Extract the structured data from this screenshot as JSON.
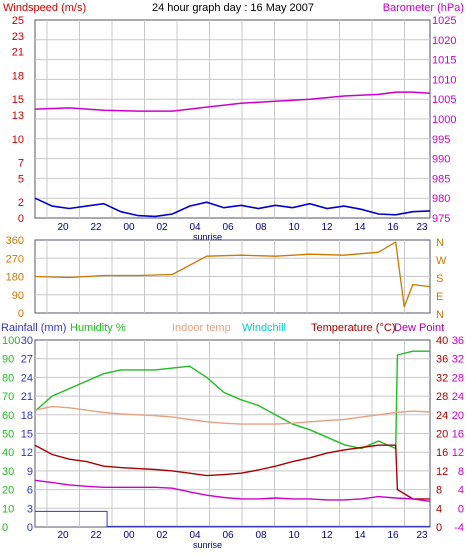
{
  "colors": {
    "wind": "#cc0000",
    "gust": "#e00000",
    "avg": "#0000cc",
    "baro": "#cc00cc",
    "dir": "#cc7700",
    "rain": "#3333cc",
    "hum": "#22bb22",
    "indoor": "#e8a080",
    "chill": "#00cccc",
    "temp": "#aa0000",
    "dew": "#cc00cc",
    "dewLabel": "#aa00aa",
    "grid": "#c8c8c8",
    "frame": "#555566",
    "sunrise": "#000088"
  },
  "top": {
    "title": "24 hour graph day : 16 May 2007",
    "left_label": "Windspeed (m/s)",
    "right_label": "Barometer (hPa)"
  },
  "mid": {
    "dir_letters": [
      "N",
      "W",
      "S",
      "E",
      "N"
    ]
  },
  "bottom": {
    "rain_label": "Rainfall (mm)",
    "hum_label": "Humidity %",
    "indoor_label": "Indoor temp",
    "chill_label": "Windchill",
    "temp_label": "Temperature (°C)",
    "dew_label": "Dew Point"
  },
  "sunrise_label": "sunrise",
  "chart_data": [
    {
      "type": "line",
      "title": "24 hour graph day : 16 May 2007",
      "x_tick_labels": [
        "20",
        "22",
        "00",
        "02",
        "04",
        "06",
        "08",
        "10",
        "12",
        "14",
        "16",
        "23"
      ],
      "y_left_label": "Windspeed (m/s)",
      "y_left_ticks": [
        0,
        2,
        5,
        7,
        10,
        13,
        15,
        18,
        21,
        23,
        25
      ],
      "y_left_range": [
        0,
        25
      ],
      "y_right_label": "Barometer (hPa)",
      "y_right_ticks": [
        975,
        980,
        985,
        990,
        995,
        1000,
        1005,
        1010,
        1015,
        1020,
        1025
      ],
      "y_right_range": [
        975,
        1025
      ],
      "series": [
        {
          "name": "Windspeed (m/s)",
          "axis": "left",
          "color": "wind",
          "x": [
            0,
            1,
            2,
            3,
            4,
            5,
            6,
            7,
            8,
            9,
            10,
            11,
            12,
            13,
            14,
            15,
            16,
            17,
            18,
            19,
            20,
            21,
            22,
            23
          ],
          "y": [
            2.5,
            1.5,
            1.2,
            1.5,
            1.8,
            0.8,
            0.3,
            0.2,
            0.5,
            1.5,
            2.0,
            1.3,
            1.6,
            1.2,
            1.6,
            1.3,
            1.8,
            1.2,
            1.5,
            1.1,
            0.5,
            0.4,
            0.8,
            0.9
          ]
        },
        {
          "name": "Barometer (hPa)",
          "axis": "right",
          "color": "baro",
          "x": [
            0,
            2,
            4,
            6,
            8,
            10,
            12,
            14,
            16,
            18,
            20,
            21,
            22,
            23
          ],
          "y": [
            1002.5,
            1002.8,
            1002.2,
            1002.0,
            1002.0,
            1003.0,
            1004.0,
            1004.5,
            1005.0,
            1005.8,
            1006.2,
            1006.8,
            1006.8,
            1006.5
          ]
        }
      ]
    },
    {
      "type": "line",
      "y_left_ticks": [
        0,
        90,
        180,
        270,
        360
      ],
      "y_left_range": [
        0,
        360
      ],
      "y_right_tick_labels": [
        "N",
        "W",
        "S",
        "E",
        "N"
      ],
      "series": [
        {
          "name": "Wind direction",
          "axis": "left",
          "color": "dir",
          "x": [
            0,
            2,
            4,
            6,
            8,
            10,
            12,
            14,
            16,
            18,
            20,
            21,
            21.5,
            22,
            23
          ],
          "y": [
            180,
            175,
            185,
            185,
            190,
            280,
            285,
            280,
            290,
            285,
            300,
            350,
            30,
            140,
            130
          ]
        }
      ]
    },
    {
      "type": "line",
      "x_tick_labels": [
        "20",
        "22",
        "00",
        "02",
        "04",
        "06",
        "08",
        "10",
        "12",
        "14",
        "16",
        "23"
      ],
      "y_rain_ticks": [
        0,
        3,
        6,
        9,
        12,
        15,
        18,
        21,
        24,
        27,
        30
      ],
      "y_hum_ticks": [
        0,
        10,
        20,
        30,
        40,
        50,
        60,
        70,
        80,
        90,
        100
      ],
      "y_temp_ticks": [
        0,
        4,
        8,
        12,
        16,
        20,
        24,
        28,
        32,
        36,
        40
      ],
      "y_temp_ticks_b": [
        -4,
        0,
        4,
        8,
        12,
        16,
        20,
        24,
        28,
        32,
        36
      ],
      "series": [
        {
          "name": "Rainfall (mm)",
          "axis": "rain",
          "color": "rain",
          "x": [
            0,
            4.2,
            4.2,
            23
          ],
          "y": [
            2.5,
            2.5,
            0.1,
            0.1
          ]
        },
        {
          "name": "Humidity %",
          "axis": "hum",
          "color": "hum",
          "x": [
            0,
            1,
            2,
            3,
            4,
            5,
            6,
            7,
            8,
            9,
            10,
            11,
            12,
            13,
            14,
            15,
            16,
            17,
            18,
            19,
            20,
            21,
            21.1,
            22,
            23
          ],
          "y": [
            62,
            70,
            74,
            78,
            82,
            84,
            84,
            84,
            85,
            86,
            80,
            72,
            68,
            65,
            60,
            55,
            52,
            48,
            44,
            42,
            46,
            42,
            92,
            94,
            94
          ]
        },
        {
          "name": "Indoor temp",
          "axis": "temp",
          "color": "indoor",
          "x": [
            0,
            1,
            2,
            3,
            4,
            5,
            6,
            7,
            8,
            9,
            10,
            11,
            12,
            13,
            14,
            15,
            16,
            17,
            18,
            19,
            20,
            21,
            22,
            23
          ],
          "y": [
            25,
            25.8,
            25.5,
            25.0,
            24.5,
            24.2,
            24.0,
            23.8,
            23.5,
            23.0,
            22.5,
            22.2,
            22.0,
            22.0,
            22.0,
            22.2,
            22.5,
            22.8,
            23.0,
            23.5,
            24.0,
            24.5,
            24.8,
            24.6
          ]
        },
        {
          "name": "Temperature (°C)",
          "axis": "temp",
          "color": "temp",
          "x": [
            0,
            1,
            2,
            3,
            4,
            5,
            6,
            7,
            8,
            9,
            10,
            11,
            12,
            13,
            14,
            15,
            16,
            17,
            18,
            19,
            20,
            21,
            21.1,
            22,
            23
          ],
          "y": [
            17.5,
            15.5,
            14.5,
            14.0,
            13.0,
            12.7,
            12.5,
            12.3,
            12.0,
            11.5,
            11.0,
            11.2,
            11.5,
            12.2,
            13.0,
            14.0,
            14.8,
            15.8,
            16.5,
            17.0,
            17.5,
            17.5,
            8.0,
            6.0,
            6.0
          ]
        },
        {
          "name": "Dew Point",
          "axis": "temp",
          "color": "dew",
          "x": [
            0,
            1,
            2,
            3,
            4,
            5,
            6,
            7,
            8,
            9,
            10,
            11,
            12,
            13,
            14,
            15,
            16,
            17,
            18,
            19,
            20,
            21,
            22,
            23
          ],
          "y": [
            10.0,
            9.5,
            9.0,
            8.7,
            8.5,
            8.5,
            8.5,
            8.5,
            8.3,
            7.5,
            6.8,
            6.3,
            6.0,
            6.0,
            6.2,
            6.0,
            6.0,
            5.8,
            5.8,
            6.0,
            6.5,
            6.2,
            6.0,
            5.5
          ]
        }
      ]
    }
  ]
}
